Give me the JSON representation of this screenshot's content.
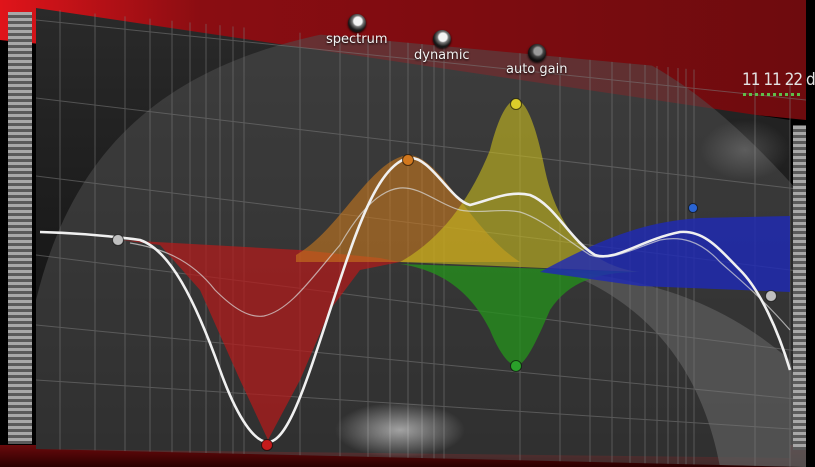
{
  "plugin": {
    "toggles": [
      {
        "label": "spectrum",
        "state": "on"
      },
      {
        "label": "dynamic",
        "state": "on"
      },
      {
        "label": "auto gain",
        "state": "off"
      }
    ],
    "level_readout": "11 11 22 d"
  },
  "colors": {
    "frame": "#7a0d10",
    "band_low": "#b41a1a",
    "band_orange": "#c8781e",
    "band_yellow": "#c9bd1e",
    "band_green": "#25901c",
    "band_blue": "#1e2ab4",
    "curve": "#f0f0f0"
  },
  "eq_nodes": [
    {
      "name": "low-shelf-node",
      "color": "#bfbfbf"
    },
    {
      "name": "band-1-node-red",
      "color": "#c31b1b"
    },
    {
      "name": "band-2-node-orange",
      "color": "#d2781e"
    },
    {
      "name": "band-3-node-yellow",
      "color": "#dccd2a"
    },
    {
      "name": "band-4-node-green",
      "color": "#2aa02a"
    },
    {
      "name": "band-5-node-blue",
      "color": "#2a64d2"
    },
    {
      "name": "high-shelf-node",
      "color": "#bfbfbf"
    }
  ]
}
